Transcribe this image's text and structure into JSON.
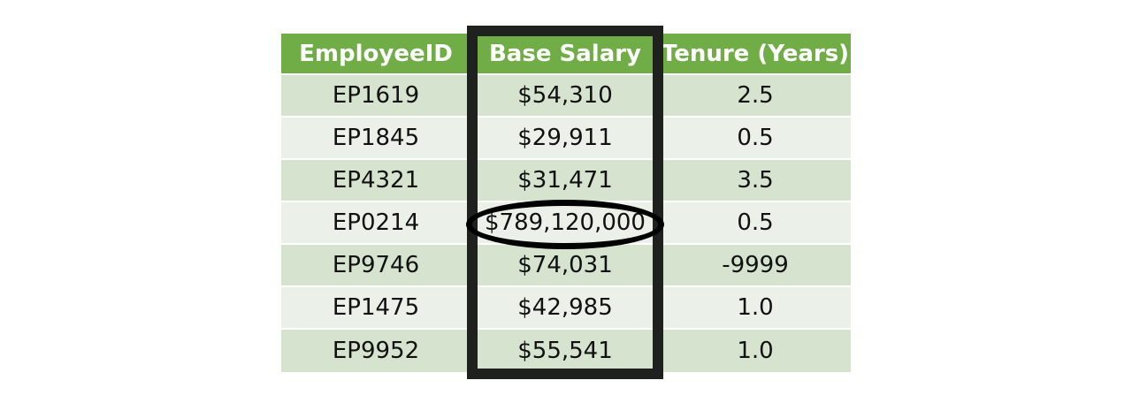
{
  "table": {
    "headers": [
      "EmployeeID",
      "Base Salary",
      "Tenure (Years)"
    ],
    "rows": [
      {
        "id": "EP1619",
        "salary": "$54,310",
        "tenure": "2.5"
      },
      {
        "id": "EP1845",
        "salary": "$29,911",
        "tenure": "0.5"
      },
      {
        "id": "EP4321",
        "salary": "$31,471",
        "tenure": "3.5"
      },
      {
        "id": "EP0214",
        "salary": "$789,120,000",
        "tenure": "0.5"
      },
      {
        "id": "EP9746",
        "salary": "$74,031",
        "tenure": "-9999"
      },
      {
        "id": "EP1475",
        "salary": "$42,985",
        "tenure": "1.0"
      },
      {
        "id": "EP9952",
        "salary": "$55,541",
        "tenure": "1.0"
      }
    ]
  },
  "colors": {
    "header": "#70ad47",
    "row_dark": "#d6e3cf",
    "row_light": "#ebf1e8",
    "frame": "#1f211f"
  }
}
